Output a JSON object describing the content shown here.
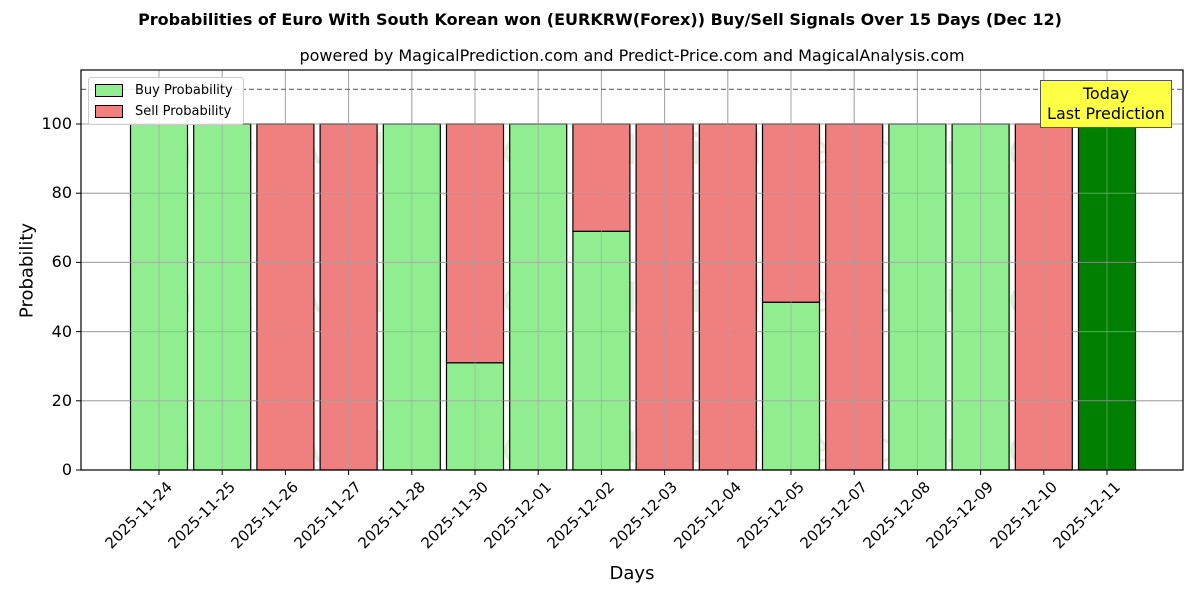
{
  "chart_data": {
    "type": "bar",
    "stacked": true,
    "title": "Probabilities of Euro With South Korean won (EURKRW(Forex)) Buy/Sell Signals Over 15 Days (Dec 12)",
    "subtitle": "powered by MagicalPrediction.com and Predict-Price.com and MagicalAnalysis.com",
    "xlabel": "Days",
    "ylabel": "Probability",
    "ylim": [
      0,
      115
    ],
    "yticks": [
      0,
      20,
      40,
      60,
      80,
      100
    ],
    "grid": true,
    "reference_line": {
      "y": 110,
      "style": "dashed"
    },
    "legend_position": "upper left",
    "categories": [
      "2025-11-24",
      "2025-11-25",
      "2025-11-26",
      "2025-11-27",
      "2025-11-28",
      "2025-11-30",
      "2025-12-01",
      "2025-12-02",
      "2025-12-03",
      "2025-12-04",
      "2025-12-05",
      "2025-12-07",
      "2025-12-08",
      "2025-12-09",
      "2025-12-10",
      "2025-12-11"
    ],
    "series": [
      {
        "name": "Buy Probability",
        "color": "#90ee90",
        "values": [
          100,
          100,
          0,
          0,
          100,
          31,
          100,
          69,
          0,
          0,
          48.5,
          0,
          100,
          100,
          0,
          100
        ]
      },
      {
        "name": "Sell Probability",
        "color": "#f08080",
        "values": [
          0,
          0,
          100,
          100,
          0,
          69,
          0,
          31,
          100,
          100,
          51.5,
          100,
          0,
          0,
          100,
          0
        ]
      }
    ],
    "highlight": {
      "category": "2025-12-11",
      "color": "#008000",
      "annotation": "Today\nLast Prediction"
    },
    "watermarks": [
      "MagicalAnalysis.com",
      "MagicalPrediction.com"
    ]
  },
  "legend": {
    "buy": "Buy Probability",
    "sell": "Sell Probability"
  },
  "annotation": {
    "line1": "Today",
    "line2": "Last Prediction"
  }
}
